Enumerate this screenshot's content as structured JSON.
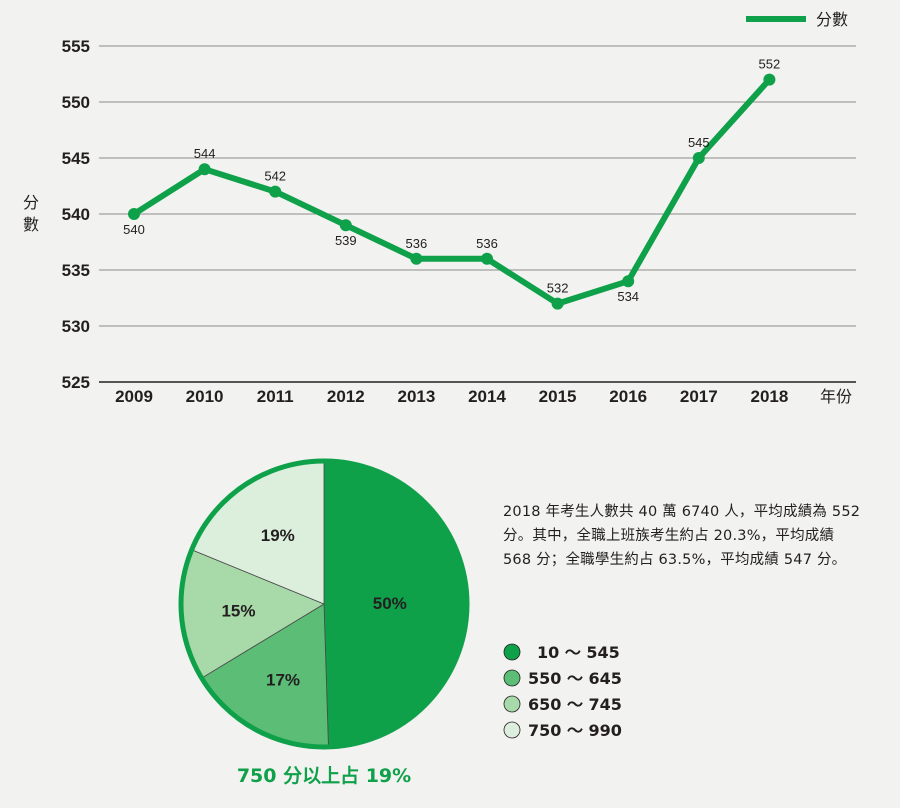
{
  "chart_data": [
    {
      "type": "line",
      "series": [
        {
          "name": "分數",
          "values": [
            540,
            544,
            542,
            539,
            536,
            536,
            532,
            534,
            545,
            552
          ]
        }
      ],
      "categories": [
        "2009",
        "2010",
        "2011",
        "2012",
        "2013",
        "2014",
        "2015",
        "2016",
        "2017",
        "2018"
      ],
      "data_labels": [
        "540",
        "544",
        "542",
        "539",
        "536",
        "536",
        "532",
        "534",
        "545",
        "552"
      ],
      "ylim": [
        525,
        555
      ],
      "yticks": [
        525,
        530,
        535,
        540,
        545,
        550,
        555
      ],
      "ylabel": "分數",
      "xlabel": "年份",
      "legend": "分數",
      "legend_position": "top-right",
      "grid": true
    },
    {
      "type": "pie",
      "slices": [
        {
          "range": "10 ～ 545",
          "percent": 50,
          "label": "50%"
        },
        {
          "range": "550 ～ 645",
          "percent": 17,
          "label": "17%"
        },
        {
          "range": "650 ～ 745",
          "percent": 15,
          "label": "15%"
        },
        {
          "range": "750 ～ 990",
          "percent": 19,
          "label": "19%"
        }
      ],
      "caption": "750 分以上占 19%"
    }
  ],
  "colors": {
    "line": "#0fa04a",
    "slice_1": "#0fa04a",
    "slice_2": "#5bbd76",
    "slice_3": "#a8d9a8",
    "slice_4": "#dcefdc",
    "pie_border": "#0fa04a",
    "grid": "#8c8c8c"
  },
  "note": {
    "text": "2018 年考生人數共 40 萬 6740 人，平均成績為 552 分。其中，全職上班族考生約占 20.3%，平均成績 568 分；全職學生約占 63.5%，平均成績 547 分。"
  }
}
